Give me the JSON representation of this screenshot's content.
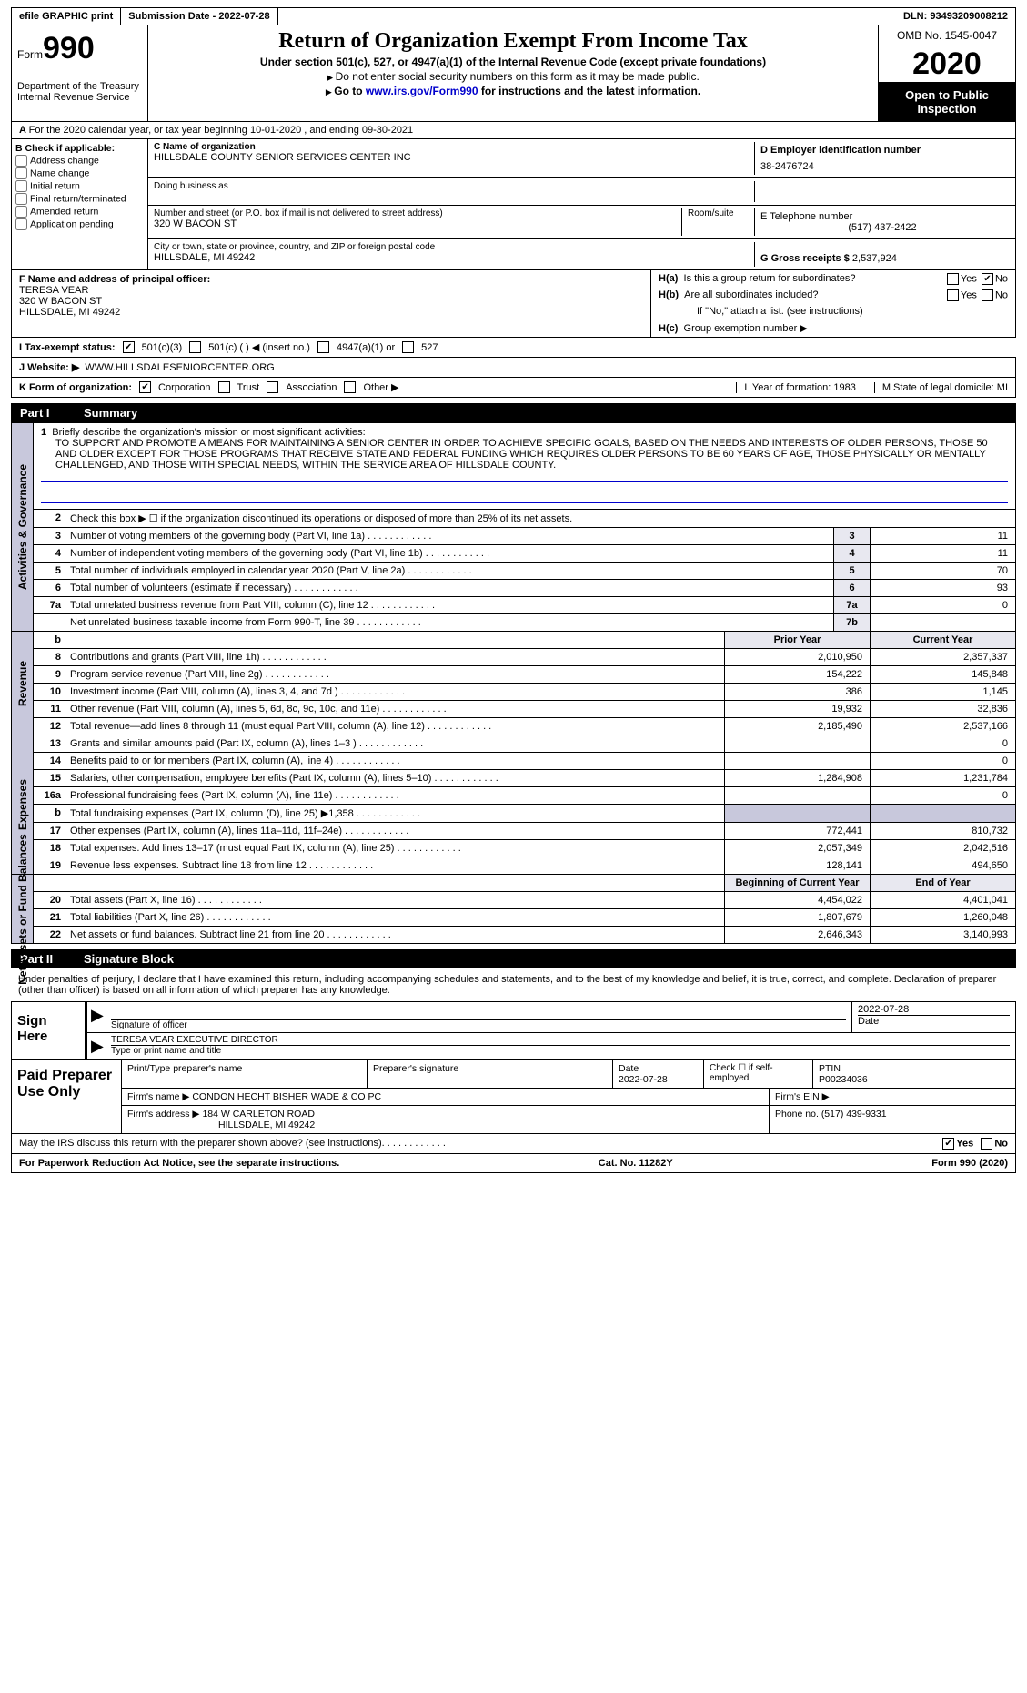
{
  "top": {
    "efile": "efile GRAPHIC print",
    "submission": "Submission Date - 2022-07-28",
    "dln": "DLN: 93493209008212"
  },
  "header": {
    "form_label": "Form",
    "form_num": "990",
    "dept": "Department of the Treasury Internal Revenue Service",
    "title": "Return of Organization Exempt From Income Tax",
    "sub1": "Under section 501(c), 527, or 4947(a)(1) of the Internal Revenue Code (except private foundations)",
    "sub2": "Do not enter social security numbers on this form as it may be made public.",
    "sub3_pre": "Go to ",
    "sub3_link": "www.irs.gov/Form990",
    "sub3_post": " for instructions and the latest information.",
    "omb": "OMB No. 1545-0047",
    "year": "2020",
    "open": "Open to Public Inspection"
  },
  "rowA": "For the 2020 calendar year, or tax year beginning 10-01-2020   , and ending 09-30-2021",
  "boxB": {
    "title": "B Check if applicable:",
    "items": [
      "Address change",
      "Name change",
      "Initial return",
      "Final return/terminated",
      "Amended return",
      "Application pending"
    ]
  },
  "boxC": {
    "label": "C Name of organization",
    "name": "HILLSDALE COUNTY SENIOR SERVICES CENTER INC",
    "dba_label": "Doing business as",
    "street_label": "Number and street (or P.O. box if mail is not delivered to street address)",
    "street": "320 W BACON ST",
    "room_label": "Room/suite",
    "city_label": "City or town, state or province, country, and ZIP or foreign postal code",
    "city": "HILLSDALE, MI  49242"
  },
  "boxD": {
    "label": "D Employer identification number",
    "value": "38-2476724"
  },
  "boxE": {
    "label": "E Telephone number",
    "value": "(517) 437-2422"
  },
  "boxG": {
    "label": "G Gross receipts $",
    "value": "2,537,924"
  },
  "boxF": {
    "label": "F  Name and address of principal officer:",
    "name": "TERESA VEAR",
    "street": "320 W BACON ST",
    "city": "HILLSDALE, MI  49242"
  },
  "boxH": {
    "a": "Is this a group return for subordinates?",
    "b": "Are all subordinates included?",
    "b_note": "If \"No,\" attach a list. (see instructions)",
    "c": "Group exemption number ▶",
    "ha": "H(a)",
    "hb": "H(b)",
    "hc": "H(c)",
    "yes": "Yes",
    "no": "No"
  },
  "rowI": {
    "label": "I   Tax-exempt status:",
    "opts": [
      "501(c)(3)",
      "501(c) (  ) ◀ (insert no.)",
      "4947(a)(1) or",
      "527"
    ]
  },
  "rowJ": {
    "label": "J   Website: ▶",
    "value": "WWW.HILLSDALESENIORCENTER.ORG"
  },
  "rowK": {
    "label": "K Form of organization:",
    "opts": [
      "Corporation",
      "Trust",
      "Association",
      "Other ▶"
    ],
    "L": "L Year of formation: 1983",
    "M": "M State of legal domicile: MI"
  },
  "part1": {
    "label": "Part I",
    "title": "Summary"
  },
  "mission": {
    "intro": "Briefly describe the organization's mission or most significant activities:",
    "text": "TO SUPPORT AND PROMOTE A MEANS FOR MAINTAINING A SENIOR CENTER IN ORDER TO ACHIEVE SPECIFIC GOALS, BASED ON THE NEEDS AND INTERESTS OF OLDER PERSONS, THOSE 50 AND OLDER EXCEPT FOR THOSE PROGRAMS THAT RECEIVE STATE AND FEDERAL FUNDING WHICH REQUIRES OLDER PERSONS TO BE 60 YEARS OF AGE, THOSE PHYSICALLY OR MENTALLY CHALLENGED, AND THOSE WITH SPECIAL NEEDS, WITHIN THE SERVICE AREA OF HILLSDALE COUNTY."
  },
  "line2": "Check this box ▶ ☐  if the organization discontinued its operations or disposed of more than 25% of its net assets.",
  "activities_label": "Activities & Governance",
  "revenue_label": "Revenue",
  "expenses_label": "Expenses",
  "netassets_label": "Net Assets or Fund Balances",
  "lines_top": [
    {
      "n": "3",
      "t": "Number of voting members of the governing body (Part VI, line 1a)",
      "box": "3",
      "v": "11"
    },
    {
      "n": "4",
      "t": "Number of independent voting members of the governing body (Part VI, line 1b)",
      "box": "4",
      "v": "11"
    },
    {
      "n": "5",
      "t": "Total number of individuals employed in calendar year 2020 (Part V, line 2a)",
      "box": "5",
      "v": "70"
    },
    {
      "n": "6",
      "t": "Total number of volunteers (estimate if necessary)",
      "box": "6",
      "v": "93"
    },
    {
      "n": "7a",
      "t": "Total unrelated business revenue from Part VIII, column (C), line 12",
      "box": "7a",
      "v": "0"
    },
    {
      "n": "",
      "t": "Net unrelated business taxable income from Form 990-T, line 39",
      "box": "7b",
      "v": ""
    }
  ],
  "col_headers": {
    "prior": "Prior Year",
    "current": "Current Year",
    "begin": "Beginning of Current Year",
    "end": "End of Year"
  },
  "revenue_lines": [
    {
      "n": "8",
      "t": "Contributions and grants (Part VIII, line 1h)",
      "p": "2,010,950",
      "c": "2,357,337"
    },
    {
      "n": "9",
      "t": "Program service revenue (Part VIII, line 2g)",
      "p": "154,222",
      "c": "145,848"
    },
    {
      "n": "10",
      "t": "Investment income (Part VIII, column (A), lines 3, 4, and 7d )",
      "p": "386",
      "c": "1,145"
    },
    {
      "n": "11",
      "t": "Other revenue (Part VIII, column (A), lines 5, 6d, 8c, 9c, 10c, and 11e)",
      "p": "19,932",
      "c": "32,836"
    },
    {
      "n": "12",
      "t": "Total revenue—add lines 8 through 11 (must equal Part VIII, column (A), line 12)",
      "p": "2,185,490",
      "c": "2,537,166"
    }
  ],
  "expense_lines": [
    {
      "n": "13",
      "t": "Grants and similar amounts paid (Part IX, column (A), lines 1–3 )",
      "p": "",
      "c": "0"
    },
    {
      "n": "14",
      "t": "Benefits paid to or for members (Part IX, column (A), line 4)",
      "p": "",
      "c": "0"
    },
    {
      "n": "15",
      "t": "Salaries, other compensation, employee benefits (Part IX, column (A), lines 5–10)",
      "p": "1,284,908",
      "c": "1,231,784"
    },
    {
      "n": "16a",
      "t": "Professional fundraising fees (Part IX, column (A), line 11e)",
      "p": "",
      "c": "0"
    },
    {
      "n": "b",
      "t": "Total fundraising expenses (Part IX, column (D), line 25) ▶1,358",
      "p": "shade",
      "c": "shade"
    },
    {
      "n": "17",
      "t": "Other expenses (Part IX, column (A), lines 11a–11d, 11f–24e)",
      "p": "772,441",
      "c": "810,732"
    },
    {
      "n": "18",
      "t": "Total expenses. Add lines 13–17 (must equal Part IX, column (A), line 25)",
      "p": "2,057,349",
      "c": "2,042,516"
    },
    {
      "n": "19",
      "t": "Revenue less expenses. Subtract line 18 from line 12",
      "p": "128,141",
      "c": "494,650"
    }
  ],
  "net_lines": [
    {
      "n": "20",
      "t": "Total assets (Part X, line 16)",
      "p": "4,454,022",
      "c": "4,401,041"
    },
    {
      "n": "21",
      "t": "Total liabilities (Part X, line 26)",
      "p": "1,807,679",
      "c": "1,260,048"
    },
    {
      "n": "22",
      "t": "Net assets or fund balances. Subtract line 21 from line 20",
      "p": "2,646,343",
      "c": "3,140,993"
    }
  ],
  "part2": {
    "label": "Part II",
    "title": "Signature Block"
  },
  "sig": {
    "intro": "Under penalties of perjury, I declare that I have examined this return, including accompanying schedules and statements, and to the best of my knowledge and belief, it is true, correct, and complete. Declaration of preparer (other than officer) is based on all information of which preparer has any knowledge.",
    "here": "Sign Here",
    "sig_label": "Signature of officer",
    "date_label": "Date",
    "date": "2022-07-28",
    "name": "TERESA VEAR  EXECUTIVE DIRECTOR",
    "name_label": "Type or print name and title"
  },
  "prep": {
    "title": "Paid Preparer Use Only",
    "h1": "Print/Type preparer's name",
    "h2": "Preparer's signature",
    "h3": "Date",
    "h4": "Check ☐ if self-employed",
    "h5": "PTIN",
    "date": "2022-07-28",
    "ptin": "P00234036",
    "firm_label": "Firm's name   ▶",
    "firm": "CONDON HECHT BISHER WADE & CO PC",
    "ein_label": "Firm's EIN ▶",
    "addr_label": "Firm's address ▶",
    "addr1": "184 W CARLETON ROAD",
    "addr2": "HILLSDALE, MI  49242",
    "phone_label": "Phone no.",
    "phone": "(517) 439-9331"
  },
  "footer": {
    "discuss": "May the IRS discuss this return with the preparer shown above? (see instructions)",
    "yes": "Yes",
    "no": "No",
    "pra": "For Paperwork Reduction Act Notice, see the separate instructions.",
    "cat": "Cat. No. 11282Y",
    "form": "Form 990 (2020)"
  }
}
